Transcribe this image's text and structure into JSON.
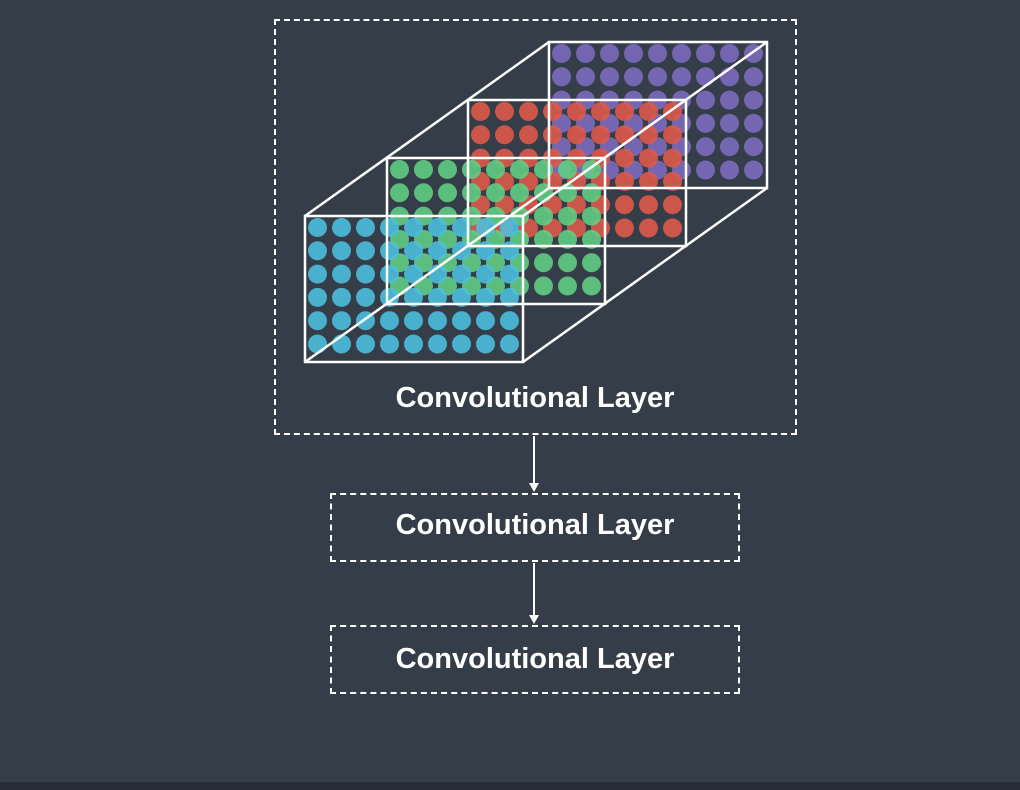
{
  "diagram": {
    "layers": [
      {
        "label": "Convolutional Layer",
        "expanded": true
      },
      {
        "label": "Convolutional Layer",
        "expanded": false
      },
      {
        "label": "Convolutional Layer",
        "expanded": false
      }
    ],
    "feature_maps": {
      "colors": [
        "#4cc0e0",
        "#62d084",
        "#e05a4a",
        "#7f6cc0"
      ],
      "rows": 6,
      "cols": 9
    }
  }
}
